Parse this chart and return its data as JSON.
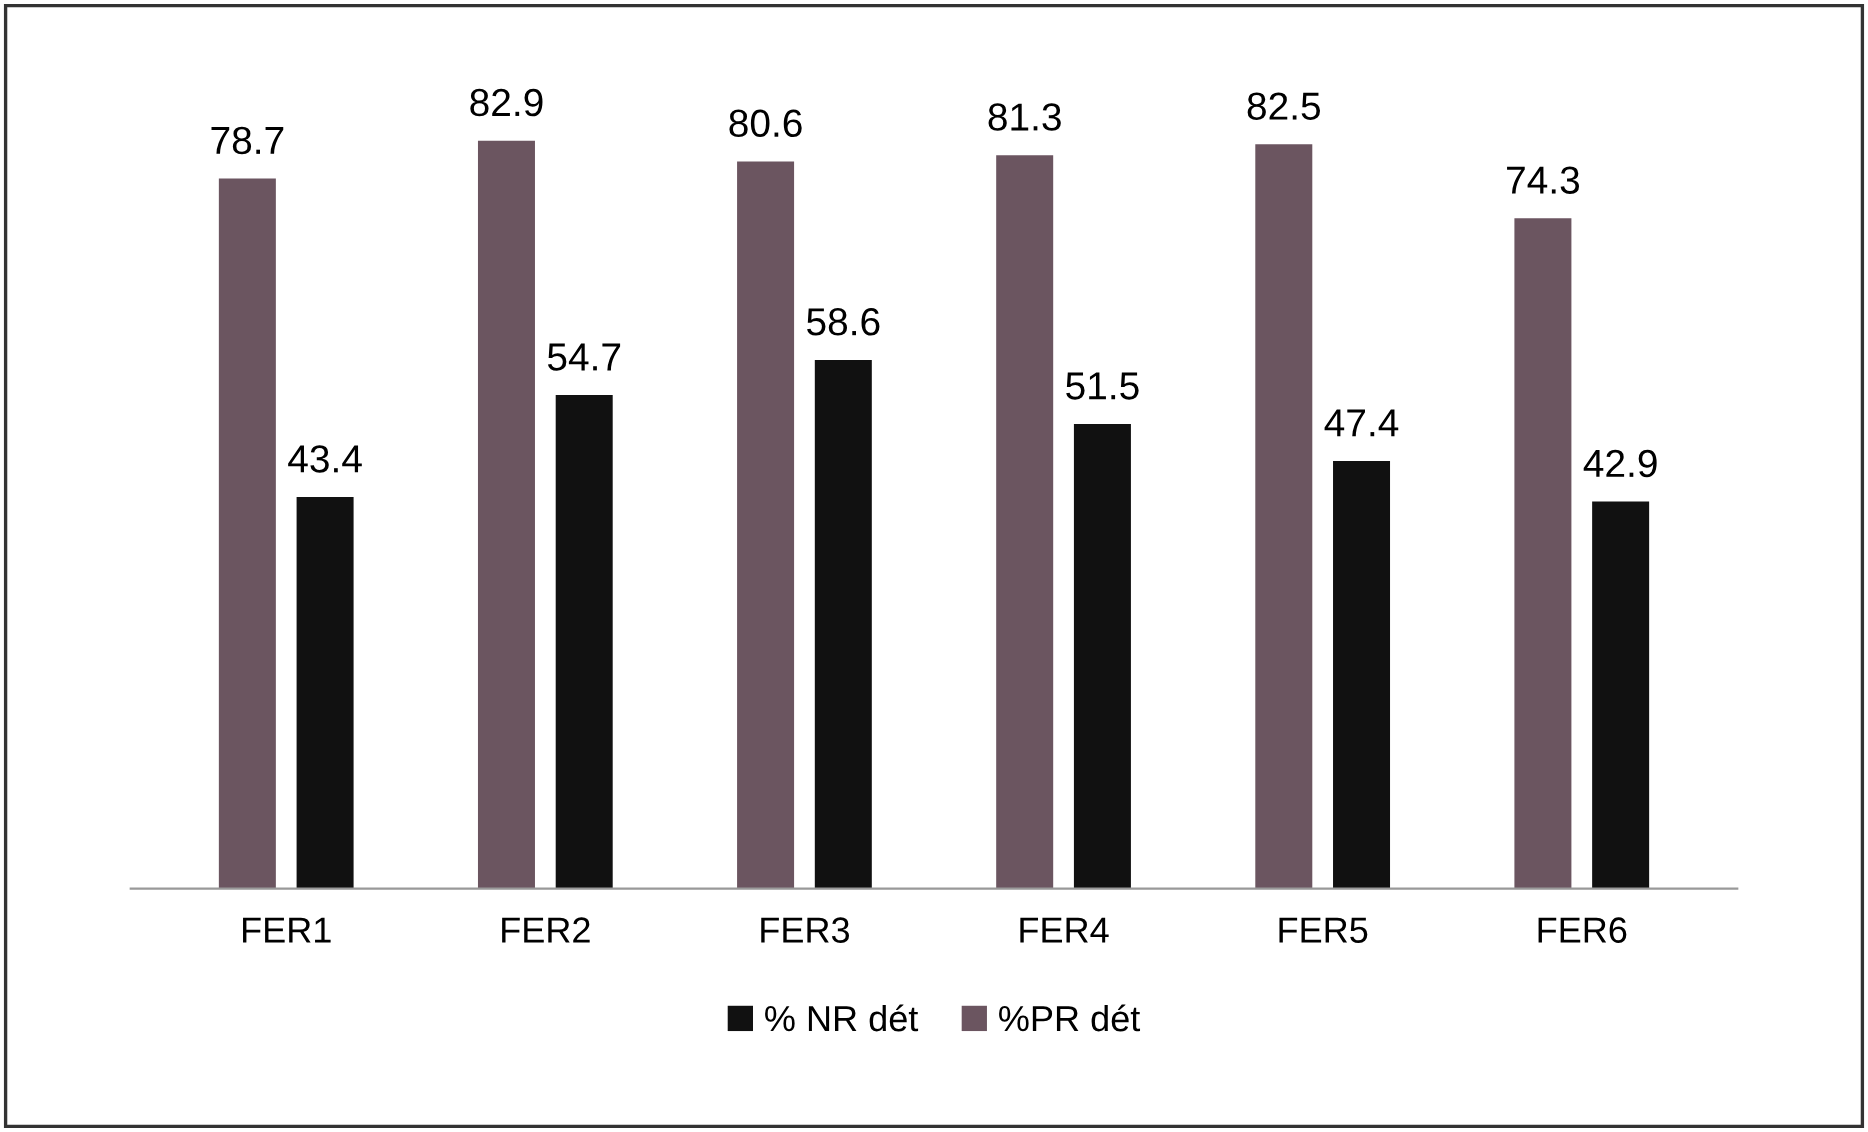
{
  "chart_data": {
    "type": "bar",
    "categories": [
      "FER1",
      "FER2",
      "FER3",
      "FER4",
      "FER5",
      "FER6"
    ],
    "series": [
      {
        "name": "%PR dét",
        "color": "#6b5560",
        "values": [
          78.7,
          82.9,
          80.6,
          81.3,
          82.5,
          74.3
        ]
      },
      {
        "name": "% NR dét",
        "color": "#111111",
        "values": [
          43.4,
          54.7,
          58.6,
          51.5,
          47.4,
          42.9
        ]
      }
    ],
    "data_labels": true,
    "legend": "bottom",
    "grid": false
  }
}
